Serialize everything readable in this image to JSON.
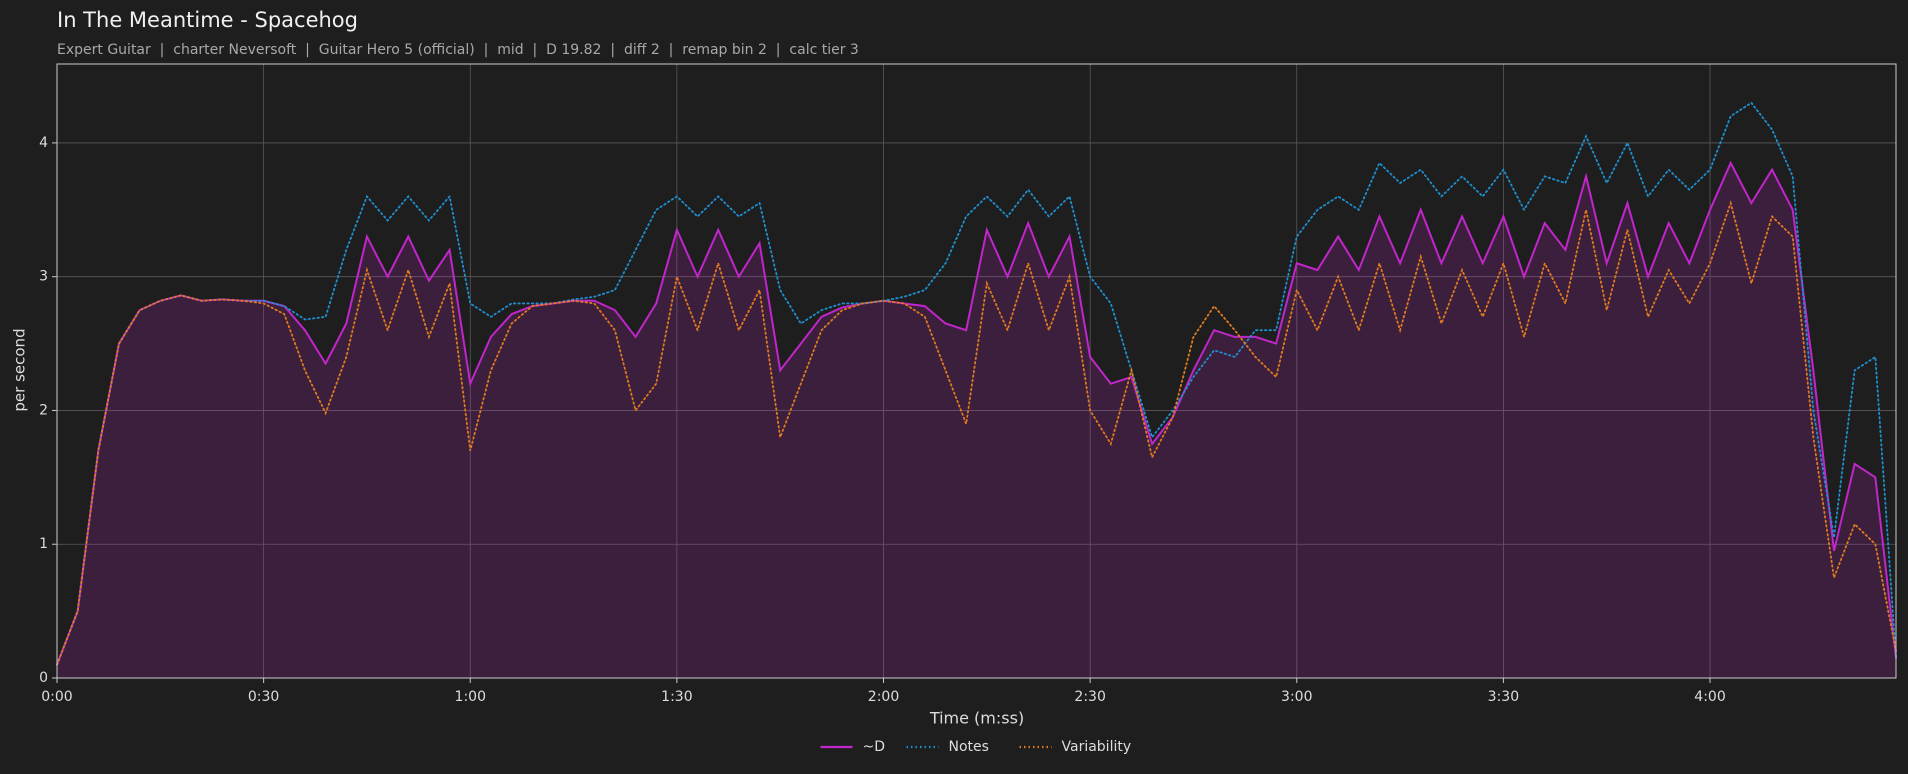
{
  "chart_data": {
    "type": "line",
    "title": "In The Meantime - Spacehog",
    "subtitle": "Expert Guitar  |  charter Neversoft  |  Guitar Hero 5 (official)  |  mid  |  D 19.82  |  diff 2  |  remap bin 2  |  calc tier 3",
    "xlabel": "Time (m:ss)",
    "ylabel": "per second",
    "x": [
      0,
      3,
      6,
      9,
      12,
      15,
      18,
      21,
      24,
      27,
      30,
      33,
      36,
      39,
      42,
      45,
      48,
      51,
      54,
      57,
      60,
      63,
      66,
      69,
      72,
      75,
      78,
      81,
      84,
      87,
      90,
      93,
      96,
      99,
      102,
      105,
      108,
      111,
      114,
      117,
      120,
      123,
      126,
      129,
      132,
      135,
      138,
      141,
      144,
      147,
      150,
      153,
      156,
      159,
      162,
      165,
      168,
      171,
      174,
      177,
      180,
      183,
      186,
      189,
      192,
      195,
      198,
      201,
      204,
      207,
      210,
      213,
      216,
      219,
      222,
      225,
      228,
      231,
      234,
      237,
      240,
      243,
      246,
      249,
      252,
      255,
      258,
      261,
      264,
      267
    ],
    "series": [
      {
        "name": "~D",
        "color": "#c026c9",
        "dash": "solid",
        "fill": true,
        "values": [
          0.1,
          0.5,
          1.7,
          2.5,
          2.75,
          2.82,
          2.86,
          2.82,
          2.83,
          2.82,
          2.82,
          2.78,
          2.6,
          2.35,
          2.65,
          3.3,
          3.0,
          3.3,
          2.97,
          3.2,
          2.2,
          2.55,
          2.72,
          2.78,
          2.8,
          2.82,
          2.82,
          2.75,
          2.55,
          2.8,
          3.35,
          3.0,
          3.35,
          3.0,
          3.25,
          2.3,
          2.5,
          2.7,
          2.77,
          2.8,
          2.82,
          2.8,
          2.78,
          2.65,
          2.6,
          3.35,
          3.0,
          3.4,
          3.0,
          3.3,
          2.4,
          2.2,
          2.25,
          1.75,
          1.95,
          2.3,
          2.6,
          2.55,
          2.55,
          2.5,
          3.1,
          3.05,
          3.3,
          3.05,
          3.45,
          3.1,
          3.5,
          3.1,
          3.45,
          3.1,
          3.45,
          3.0,
          3.4,
          3.2,
          3.75,
          3.1,
          3.55,
          3.0,
          3.4,
          3.1,
          3.5,
          3.85,
          3.55,
          3.8,
          3.5,
          2.3,
          0.95,
          1.6,
          1.5,
          0.15
        ]
      },
      {
        "name": "Notes",
        "color": "#1f8fcf",
        "dash": "dotted",
        "fill": false,
        "values": [
          0.1,
          0.5,
          1.7,
          2.5,
          2.75,
          2.82,
          2.86,
          2.82,
          2.83,
          2.82,
          2.82,
          2.78,
          2.68,
          2.7,
          3.2,
          3.6,
          3.42,
          3.6,
          3.42,
          3.6,
          2.8,
          2.7,
          2.8,
          2.8,
          2.8,
          2.83,
          2.85,
          2.9,
          3.2,
          3.5,
          3.6,
          3.45,
          3.6,
          3.45,
          3.55,
          2.9,
          2.65,
          2.75,
          2.8,
          2.8,
          2.82,
          2.85,
          2.9,
          3.1,
          3.45,
          3.6,
          3.45,
          3.65,
          3.45,
          3.6,
          3.0,
          2.8,
          2.3,
          1.8,
          2.0,
          2.25,
          2.45,
          2.4,
          2.6,
          2.6,
          3.3,
          3.5,
          3.6,
          3.5,
          3.85,
          3.7,
          3.8,
          3.6,
          3.75,
          3.6,
          3.8,
          3.5,
          3.75,
          3.7,
          4.05,
          3.7,
          4.0,
          3.6,
          3.8,
          3.65,
          3.8,
          4.2,
          4.3,
          4.1,
          3.75,
          2.0,
          1.05,
          2.3,
          2.4,
          0.15
        ]
      },
      {
        "name": "Variability",
        "color": "#e07a1f",
        "dash": "dotted",
        "fill": false,
        "values": [
          0.1,
          0.5,
          1.7,
          2.5,
          2.75,
          2.82,
          2.86,
          2.82,
          2.83,
          2.82,
          2.8,
          2.72,
          2.3,
          1.98,
          2.4,
          3.05,
          2.6,
          3.05,
          2.55,
          2.95,
          1.7,
          2.3,
          2.65,
          2.78,
          2.8,
          2.82,
          2.8,
          2.6,
          2.0,
          2.2,
          3.0,
          2.6,
          3.1,
          2.6,
          2.9,
          1.8,
          2.2,
          2.6,
          2.75,
          2.8,
          2.82,
          2.8,
          2.7,
          2.3,
          1.9,
          2.95,
          2.6,
          3.1,
          2.6,
          3.0,
          2.0,
          1.75,
          2.3,
          1.65,
          1.95,
          2.55,
          2.78,
          2.6,
          2.4,
          2.25,
          2.9,
          2.6,
          3.0,
          2.6,
          3.1,
          2.6,
          3.15,
          2.65,
          3.05,
          2.7,
          3.1,
          2.55,
          3.1,
          2.8,
          3.5,
          2.75,
          3.35,
          2.7,
          3.05,
          2.8,
          3.1,
          3.55,
          2.95,
          3.45,
          3.3,
          1.8,
          0.75,
          1.15,
          1.0,
          0.2
        ]
      }
    ],
    "xlim": [
      0,
      267
    ],
    "ylim": [
      0,
      4.59
    ],
    "xticks": [
      {
        "value": 0,
        "label": "0:00"
      },
      {
        "value": 30,
        "label": "0:30"
      },
      {
        "value": 60,
        "label": "1:00"
      },
      {
        "value": 90,
        "label": "1:30"
      },
      {
        "value": 120,
        "label": "2:00"
      },
      {
        "value": 150,
        "label": "2:30"
      },
      {
        "value": 180,
        "label": "3:00"
      },
      {
        "value": 210,
        "label": "3:30"
      },
      {
        "value": 240,
        "label": "4:00"
      }
    ],
    "yticks": [
      0,
      1,
      2,
      3,
      4
    ],
    "grid": true,
    "legend": "bottom"
  }
}
